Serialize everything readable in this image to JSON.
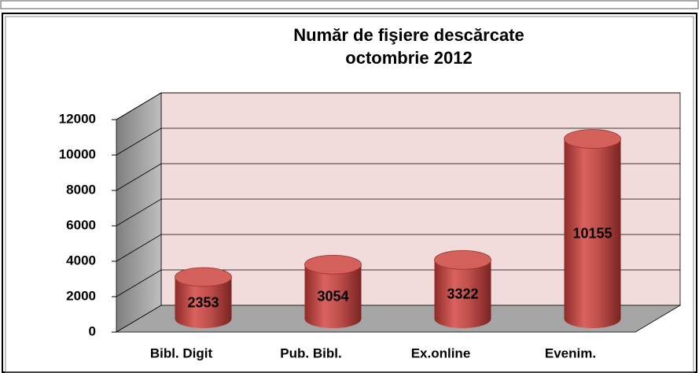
{
  "chart_data": {
    "type": "bar3d",
    "title": "Număr de fişiere descărcate",
    "subtitle": "octombrie 2012",
    "categories": [
      "Bibl. Digit",
      "Pub. Bibl.",
      "Ex.online",
      "Evenim."
    ],
    "values": [
      2353,
      3054,
      3322,
      10155
    ],
    "color": "#c0504d",
    "ylim": [
      0,
      12000
    ],
    "yticks": [
      0,
      2000,
      4000,
      6000,
      8000,
      10000,
      12000
    ],
    "grid": true
  }
}
